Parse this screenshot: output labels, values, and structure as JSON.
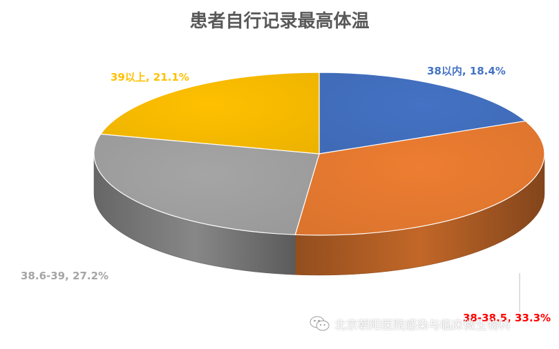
{
  "chart_data": {
    "type": "pie",
    "title": "患者自行记录最高体温",
    "categories": [
      "38以内",
      "38-38.5",
      "38.6-39",
      "39以上"
    ],
    "values": [
      18.4,
      33.3,
      27.2,
      21.1
    ],
    "unit": "%",
    "colors": [
      "#4472C4",
      "#ED7D31",
      "#A5A5A5",
      "#FFC000"
    ],
    "label_colors": [
      "#4472C4",
      "#FF0000",
      "#A5A5A5",
      "#FFC000"
    ],
    "data_labels": [
      "38以内, 18.4%",
      "38-38.5, 33.3%",
      "38.6-39, 27.2%",
      "39以上, 21.1%"
    ],
    "style": "3d-pie"
  },
  "watermark": {
    "icon": "wechat-icon",
    "text": "北京朝阳医院感染与临床微生物科"
  }
}
